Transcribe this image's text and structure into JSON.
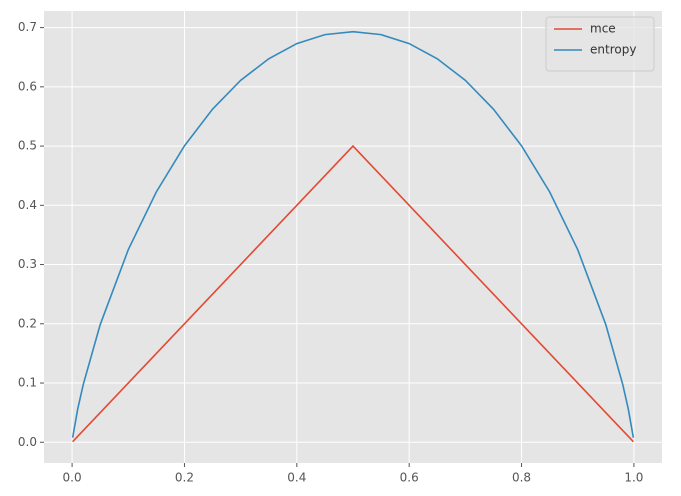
{
  "chart_data": {
    "type": "line",
    "x": [
      0.001,
      0.01,
      0.02,
      0.05,
      0.1,
      0.15,
      0.2,
      0.25,
      0.3,
      0.35,
      0.4,
      0.45,
      0.5,
      0.55,
      0.6,
      0.65,
      0.7,
      0.75,
      0.8,
      0.85,
      0.9,
      0.95,
      0.98,
      0.99,
      0.999
    ],
    "series": [
      {
        "name": "mce",
        "color": "#E24A33",
        "values": [
          0.001,
          0.01,
          0.02,
          0.05,
          0.1,
          0.15,
          0.2,
          0.25,
          0.3,
          0.35,
          0.4,
          0.45,
          0.5,
          0.45,
          0.4,
          0.35,
          0.3,
          0.25,
          0.2,
          0.15,
          0.1,
          0.05,
          0.02,
          0.01,
          0.001
        ]
      },
      {
        "name": "entropy",
        "color": "#348ABD",
        "values": [
          0.0079,
          0.056,
          0.098,
          0.1985,
          0.3251,
          0.4227,
          0.5004,
          0.5623,
          0.6109,
          0.6474,
          0.673,
          0.6881,
          0.6931,
          0.6881,
          0.673,
          0.6474,
          0.6109,
          0.5623,
          0.5004,
          0.4227,
          0.3251,
          0.1985,
          0.098,
          0.056,
          0.0079
        ]
      }
    ],
    "xlim": [
      -0.05,
      1.05
    ],
    "ylim": [
      -0.035,
      0.728
    ],
    "xticks": [
      {
        "value": 0,
        "label": "0.0"
      },
      0.2,
      0.4,
      0.6,
      0.8,
      {
        "value": 1,
        "label": "1.0"
      }
    ],
    "yticks": [
      {
        "value": 0,
        "label": "0.0"
      },
      0.1,
      0.2,
      0.3,
      0.4,
      0.5,
      0.6,
      0.7
    ],
    "grid": true,
    "legend": "upper right"
  }
}
